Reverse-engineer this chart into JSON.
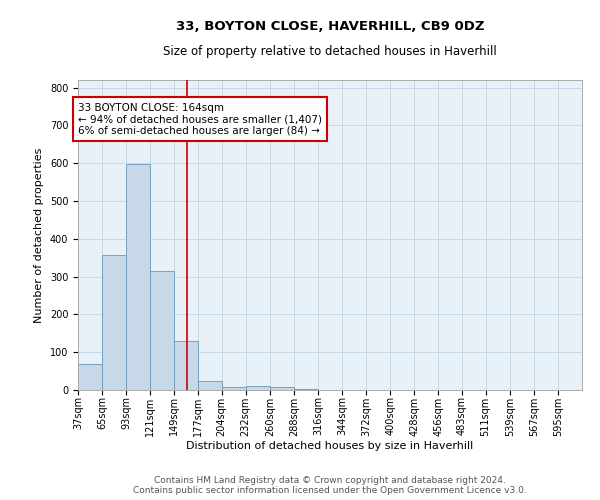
{
  "title": "33, BOYTON CLOSE, HAVERHILL, CB9 0DZ",
  "subtitle": "Size of property relative to detached houses in Haverhill",
  "xlabel": "Distribution of detached houses by size in Haverhill",
  "ylabel": "Number of detached properties",
  "bin_edges": [
    37,
    65,
    93,
    121,
    149,
    177,
    204,
    232,
    260,
    288,
    316,
    344,
    372,
    400,
    428,
    456,
    483,
    511,
    539,
    567,
    595
  ],
  "bar_heights": [
    68,
    358,
    597,
    315,
    130,
    25,
    7,
    10,
    7,
    3,
    0,
    0,
    0,
    0,
    0,
    0,
    0,
    0,
    0,
    0
  ],
  "bar_color": "#c8d8e8",
  "bar_edge_color": "#6699bb",
  "grid_color": "#c8d8e8",
  "background_color": "#e8f0f8",
  "red_line_x": 164,
  "annotation_line1": "33 BOYTON CLOSE: 164sqm",
  "annotation_line2": "← 94% of detached houses are smaller (1,407)",
  "annotation_line3": "6% of semi-detached houses are larger (84) →",
  "annotation_color": "#cc0000",
  "ylim": [
    0,
    820
  ],
  "yticks": [
    0,
    100,
    200,
    300,
    400,
    500,
    600,
    700,
    800
  ],
  "footer_line1": "Contains HM Land Registry data © Crown copyright and database right 2024.",
  "footer_line2": "Contains public sector information licensed under the Open Government Licence v3.0.",
  "title_fontsize": 9.5,
  "subtitle_fontsize": 8.5,
  "tick_label_fontsize": 7,
  "axis_label_fontsize": 8,
  "annotation_fontsize": 7.5,
  "footer_fontsize": 6.5
}
